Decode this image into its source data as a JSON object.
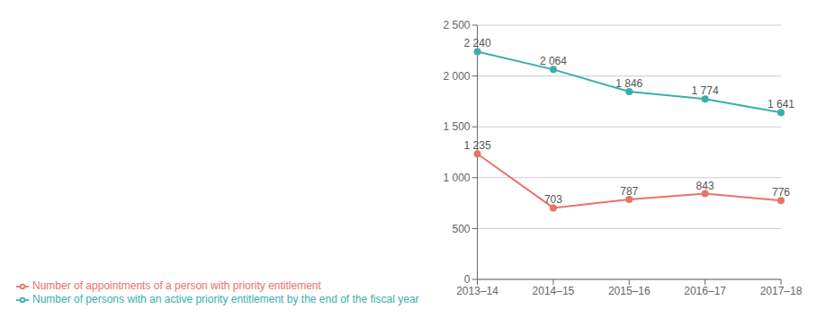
{
  "chart_data": {
    "type": "line",
    "categories": [
      "2013–14",
      "2014–15",
      "2015–16",
      "2016–17",
      "2017–18"
    ],
    "series": [
      {
        "name": "Number of persons with an active priority entitlement by the end of the fiscal year",
        "color": "#3aafa9",
        "values": [
          2240,
          2064,
          1846,
          1774,
          1641
        ],
        "value_labels": [
          "2 240",
          "2 064",
          "1 846",
          "1 774",
          "1 641"
        ]
      },
      {
        "name": "Number of appointments of a person with priority entitlement",
        "color": "#e8736a",
        "values": [
          1235,
          703,
          787,
          843,
          776
        ],
        "value_labels": [
          "1 235",
          "703",
          "787",
          "843",
          "776"
        ]
      }
    ],
    "ylim": [
      0,
      2500
    ],
    "yticks": [
      0,
      500,
      {
        "value": 1000,
        "label": "1 000"
      },
      {
        "value": 1500,
        "label": "1 500"
      },
      {
        "value": 2000,
        "label": "2 000"
      },
      {
        "value": 2500,
        "label": "2 500"
      }
    ],
    "grid": true,
    "legend": "bottom",
    "data_labels": true,
    "marker": "circle"
  }
}
